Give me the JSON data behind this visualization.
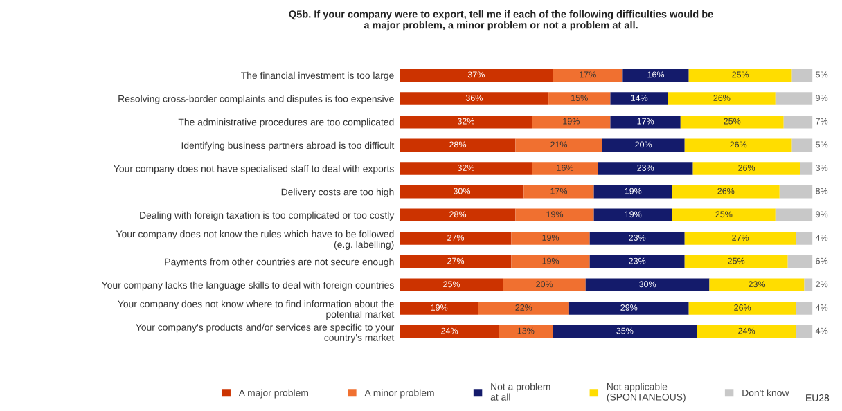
{
  "chart_data": {
    "type": "bar",
    "orientation": "horizontal",
    "stacked": true,
    "title": "Q5b. If your company were to export, tell me if each of the following difficulties would be\na major problem, a minor problem or not a problem at all.",
    "categories": [
      "The financial investment is too large",
      "Resolving cross-border complaints and disputes is too expensive",
      "The administrative procedures are too complicated",
      "Identifying business partners abroad is too difficult",
      "Your company does not have specialised staff to deal with exports",
      "Delivery costs are too high",
      "Dealing with foreign taxation is too complicated or too costly",
      "Your company does not know the rules which have to be followed\n(e.g. labelling)",
      "Payments from other countries are not secure enough",
      "Your company lacks the language skills to deal with foreign countries",
      "Your company does not know where to find information about the\npotential market",
      "Your company's products and/or services are specific to your\ncountry's market"
    ],
    "series": [
      {
        "name": "A major problem",
        "color": "#cc3300",
        "values": [
          37,
          36,
          32,
          28,
          32,
          30,
          28,
          27,
          27,
          25,
          19,
          24
        ],
        "value_labels": [
          "37%",
          "36%",
          "32%",
          "28%",
          "32%",
          "30%",
          "28%",
          "27%",
          "27%",
          "25%",
          "19%",
          "24%"
        ]
      },
      {
        "name": "A minor problem",
        "color": "#f07030",
        "values": [
          17,
          15,
          19,
          21,
          16,
          17,
          19,
          19,
          19,
          20,
          22,
          13
        ],
        "value_labels": [
          "17%",
          "15%",
          "19%",
          "21%",
          "16%",
          "17%",
          "19%",
          "19%",
          "19%",
          "20%",
          "22%",
          "13%"
        ]
      },
      {
        "name": "Not a problem\nat all",
        "color": "#141b6b",
        "values": [
          16,
          14,
          17,
          20,
          23,
          19,
          19,
          23,
          23,
          30,
          29,
          35
        ],
        "value_labels": [
          "16%",
          "14%",
          "17%",
          "20%",
          "23%",
          "19%",
          "19%",
          "23%",
          "23%",
          "30%",
          "29%",
          "35%"
        ]
      },
      {
        "name": "Not applicable\n(SPONTANEOUS)",
        "color": "#ffdd00",
        "values": [
          25,
          26,
          25,
          26,
          26,
          26,
          25,
          27,
          25,
          23,
          26,
          24
        ],
        "value_labels": [
          "25%",
          "26%",
          "25%",
          "26%",
          "26%",
          "26%",
          "25%",
          "27%",
          "25%",
          "23%",
          "26%",
          "24%"
        ]
      },
      {
        "name": "Don't know",
        "color": "#c8c8c8",
        "values": [
          5,
          9,
          7,
          5,
          3,
          8,
          9,
          4,
          6,
          2,
          4,
          4
        ],
        "value_labels": [
          "5%",
          "9%",
          "7%",
          "5%",
          "3%",
          "8%",
          "9%",
          "4%",
          "6%",
          "2%",
          "4%",
          "4%"
        ]
      }
    ],
    "annotations": [
      "EU28"
    ],
    "tick_labels": "y",
    "grid": false,
    "legend": "bottom"
  }
}
